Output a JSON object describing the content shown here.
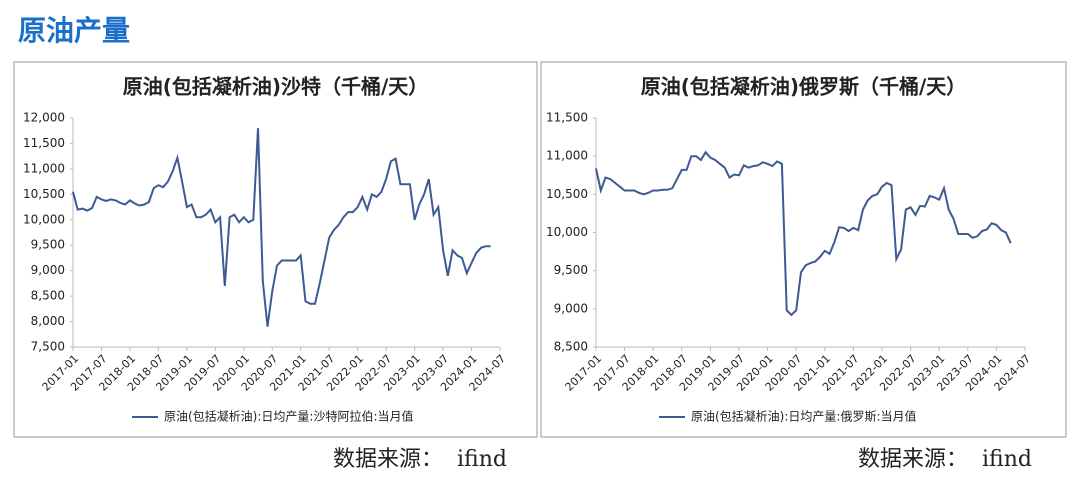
{
  "title": "原油产量",
  "chart_data": [
    {
      "type": "line",
      "title": "原油(包括凝析油)沙特（千桶/天）",
      "source": "数据来源：  ifind",
      "legend": "bottom",
      "grid": false,
      "categories": [
        "2017-01",
        null,
        null,
        null,
        null,
        null,
        "2017-07",
        null,
        null,
        null,
        null,
        null,
        "2018-01",
        null,
        null,
        null,
        null,
        null,
        "2018-07",
        null,
        null,
        null,
        null,
        null,
        "2019-01",
        null,
        null,
        null,
        null,
        null,
        "2019-07",
        null,
        null,
        null,
        null,
        null,
        "2020-01",
        null,
        null,
        null,
        null,
        null,
        "2020-07",
        null,
        null,
        null,
        null,
        null,
        "2021-01",
        null,
        null,
        null,
        null,
        null,
        "2021-07",
        null,
        null,
        null,
        null,
        null,
        "2022-01",
        null,
        null,
        null,
        null,
        null,
        "2022-07",
        null,
        null,
        null,
        null,
        null,
        "2023-01",
        null,
        null,
        null,
        null,
        null,
        "2023-07",
        null,
        null,
        null,
        null,
        null,
        "2024-01",
        null,
        null,
        null,
        null,
        null,
        "2024-07"
      ],
      "series": [
        {
          "name": "原油(包括凝析油):日均产量:沙特阿拉伯:当月值",
          "color": "#3d5a94",
          "values": [
            10550,
            10200,
            10220,
            10180,
            10230,
            10450,
            10400,
            10370,
            10400,
            10380,
            10330,
            10300,
            10380,
            10320,
            10280,
            10300,
            10350,
            10620,
            10680,
            10640,
            10750,
            10950,
            11220,
            10750,
            10250,
            10300,
            10050,
            10050,
            10100,
            10200,
            9950,
            10050,
            8700,
            10050,
            10100,
            9950,
            10050,
            9950,
            10000,
            11800,
            8800,
            7900,
            8600,
            9100,
            9200,
            9200,
            9200,
            9200,
            9300,
            8400,
            8350,
            8350,
            8750,
            9200,
            9650,
            9800,
            9900,
            10050,
            10150,
            10150,
            10250,
            10450,
            10200,
            10500,
            10450,
            10550,
            10800,
            11150,
            11200,
            10700,
            10700,
            10700,
            10000,
            10300,
            10500,
            10800,
            10100,
            10250,
            9400,
            8900,
            9400,
            9300,
            9250,
            8950,
            9150,
            9350,
            9450,
            9480,
            9480,
            null,
            null
          ]
        }
      ],
      "ylim": [
        7500,
        12000
      ],
      "yticks": [
        {
          "value": 7500,
          "label": "7,500"
        },
        {
          "value": 8000,
          "label": "8,000"
        },
        {
          "value": 8500,
          "label": "8,500"
        },
        {
          "value": 9000,
          "label": "9,000"
        },
        {
          "value": 9500,
          "label": "9,500"
        },
        {
          "value": 10000,
          "label": "10,000"
        },
        {
          "value": 10500,
          "label": "10,500"
        },
        {
          "value": 11000,
          "label": "11,000"
        },
        {
          "value": 11500,
          "label": "11,500"
        },
        {
          "value": 12000,
          "label": "12,000"
        }
      ]
    },
    {
      "type": "line",
      "title": "原油(包括凝析油)俄罗斯（千桶/天）",
      "source": "数据来源：  ifind",
      "legend": "bottom",
      "grid": false,
      "categories": [
        "2017-01",
        null,
        null,
        null,
        null,
        null,
        "2017-07",
        null,
        null,
        null,
        null,
        null,
        "2018-01",
        null,
        null,
        null,
        null,
        null,
        "2018-07",
        null,
        null,
        null,
        null,
        null,
        "2019-01",
        null,
        null,
        null,
        null,
        null,
        "2019-07",
        null,
        null,
        null,
        null,
        null,
        "2020-01",
        null,
        null,
        null,
        null,
        null,
        "2020-07",
        null,
        null,
        null,
        null,
        null,
        "2021-01",
        null,
        null,
        null,
        null,
        null,
        "2021-07",
        null,
        null,
        null,
        null,
        null,
        "2022-01",
        null,
        null,
        null,
        null,
        null,
        "2022-07",
        null,
        null,
        null,
        null,
        null,
        "2023-01",
        null,
        null,
        null,
        null,
        null,
        "2023-07",
        null,
        null,
        null,
        null,
        null,
        "2024-01",
        null,
        null,
        null,
        null,
        null,
        "2024-07"
      ],
      "series": [
        {
          "name": "原油(包括凝析油):日均产量:俄罗斯:当月值",
          "color": "#3d5a94",
          "values": [
            10840,
            10550,
            10720,
            10700,
            10650,
            10600,
            10550,
            10550,
            10550,
            10520,
            10500,
            10520,
            10550,
            10550,
            10560,
            10560,
            10580,
            10700,
            10820,
            10820,
            11000,
            11000,
            10950,
            11050,
            10980,
            10950,
            10900,
            10850,
            10720,
            10760,
            10750,
            10880,
            10850,
            10870,
            10880,
            10920,
            10900,
            10870,
            10930,
            10900,
            8980,
            8920,
            8980,
            9480,
            9570,
            9600,
            9620,
            9680,
            9760,
            9720,
            9870,
            10070,
            10060,
            10020,
            10060,
            10030,
            10300,
            10420,
            10480,
            10500,
            10600,
            10650,
            10620,
            9650,
            9780,
            10300,
            10330,
            10230,
            10350,
            10340,
            10480,
            10460,
            10430,
            10580,
            10300,
            10180,
            9980,
            9980,
            9980,
            9930,
            9950,
            10020,
            10040,
            10120,
            10100,
            10030,
            10000,
            9860,
            null,
            null,
            null
          ]
        }
      ],
      "ylim": [
        8500,
        11500
      ],
      "yticks": [
        {
          "value": 8500,
          "label": "8,500"
        },
        {
          "value": 9000,
          "label": "9,000"
        },
        {
          "value": 9500,
          "label": "9,500"
        },
        {
          "value": 10000,
          "label": "10,000"
        },
        {
          "value": 10500,
          "label": "10,500"
        },
        {
          "value": 11000,
          "label": "11,000"
        },
        {
          "value": 11500,
          "label": "11,500"
        }
      ]
    }
  ]
}
